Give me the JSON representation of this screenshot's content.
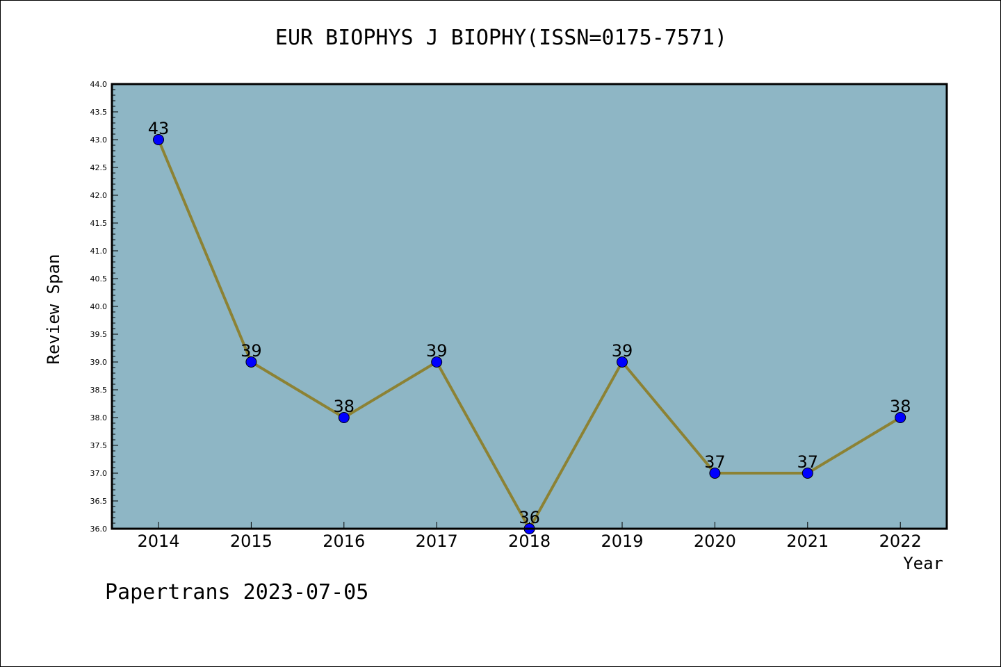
{
  "chart_data": {
    "type": "line",
    "title": "EUR BIOPHYS J BIOPHY(ISSN=0175-7571)",
    "xlabel": "Year",
    "ylabel": "Review Span",
    "categories": [
      "2014",
      "2015",
      "2016",
      "2017",
      "2018",
      "2019",
      "2020",
      "2021",
      "2022"
    ],
    "values": [
      43,
      39,
      38,
      39,
      36,
      39,
      37,
      37,
      38
    ],
    "data_labels": [
      "43",
      "39",
      "38",
      "39",
      "36",
      "39",
      "37",
      "37",
      "38"
    ],
    "ylim": [
      36.0,
      44.0
    ],
    "y_ticks": [
      "36.0",
      "36.5",
      "37.0",
      "37.5",
      "38.0",
      "38.5",
      "39.0",
      "39.5",
      "40.0",
      "40.5",
      "41.0",
      "41.5",
      "42.0",
      "42.5",
      "43.0",
      "43.5",
      "44.0"
    ],
    "grid": false,
    "legend": "none",
    "colors": {
      "plot_background": "#8eb6c5",
      "line": "#8c8234",
      "marker": "#0000ff"
    }
  },
  "footer": "Papertrans 2023-07-05"
}
